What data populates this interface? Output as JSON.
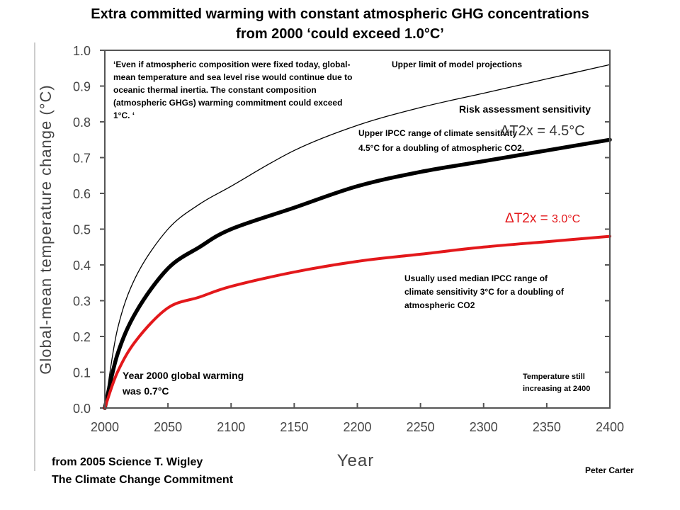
{
  "chart_data": {
    "type": "line",
    "title_line1": "Extra committed warming with constant atmospheric GHG concentrations",
    "title_line2": "from 2000  ‘could exceed 1.0°C’",
    "xlabel": "Year",
    "ylabel": "Global-mean temperature change  (°C)",
    "xlim": [
      2000,
      2400
    ],
    "ylim": [
      0.0,
      1.0
    ],
    "x_ticks": [
      "2000",
      "2050",
      "2100",
      "2150",
      "2200",
      "2250",
      "2300",
      "2350",
      "2400"
    ],
    "y_ticks": [
      "0.0",
      "0.1",
      "0.2",
      "0.3",
      "0.4",
      "0.5",
      "0.6",
      "0.7",
      "0.8",
      "0.9",
      "1.0"
    ],
    "x": [
      2000,
      2010,
      2025,
      2050,
      2075,
      2100,
      2150,
      2200,
      2250,
      2300,
      2350,
      2400
    ],
    "series": [
      {
        "values": [
          0.0,
          0.22,
          0.37,
          0.5,
          0.57,
          0.62,
          0.72,
          0.79,
          0.84,
          0.88,
          0.92,
          0.96
        ]
      },
      {
        "values": [
          0.0,
          0.15,
          0.27,
          0.39,
          0.45,
          0.5,
          0.56,
          0.62,
          0.66,
          0.69,
          0.72,
          0.75
        ]
      },
      {
        "values": [
          0.0,
          0.1,
          0.19,
          0.28,
          0.31,
          0.34,
          0.38,
          0.41,
          0.43,
          0.45,
          0.465,
          0.48
        ]
      }
    ],
    "colors": [
      "#000000",
      "#000000",
      "#e3181b"
    ]
  },
  "annotations": {
    "quote": "‘Even if atmospheric composition were fixed today, global-mean temperature and sea level rise would continue due to oceanic thermal inertia. The constant composition (atmospheric GHGs) warming commitment could exceed 1°C. ‘",
    "upper_limit": "Upper limit of model projections",
    "risk": "Risk assessment sensitivity",
    "upper_ipcc": "Upper IPCC range of climate sensitivity  4.5°C for a doubling of atmospheric CO2.",
    "dt45": "ΔT2x = 4.5°C",
    "dt30_prefix": "ΔT2x = ",
    "dt30_value": "3.0°C",
    "median": "Usually used median IPCC range of climate sensitivity 3°C for a doubling of atmospheric CO2",
    "year2000": "Year 2000 global warming was 0.7°C",
    "still": "Temperature still increasing at 2400",
    "source1": "from 2005 Science T. Wigley",
    "source2": "The Climate Change Commitment",
    "author": "Peter Carter"
  }
}
